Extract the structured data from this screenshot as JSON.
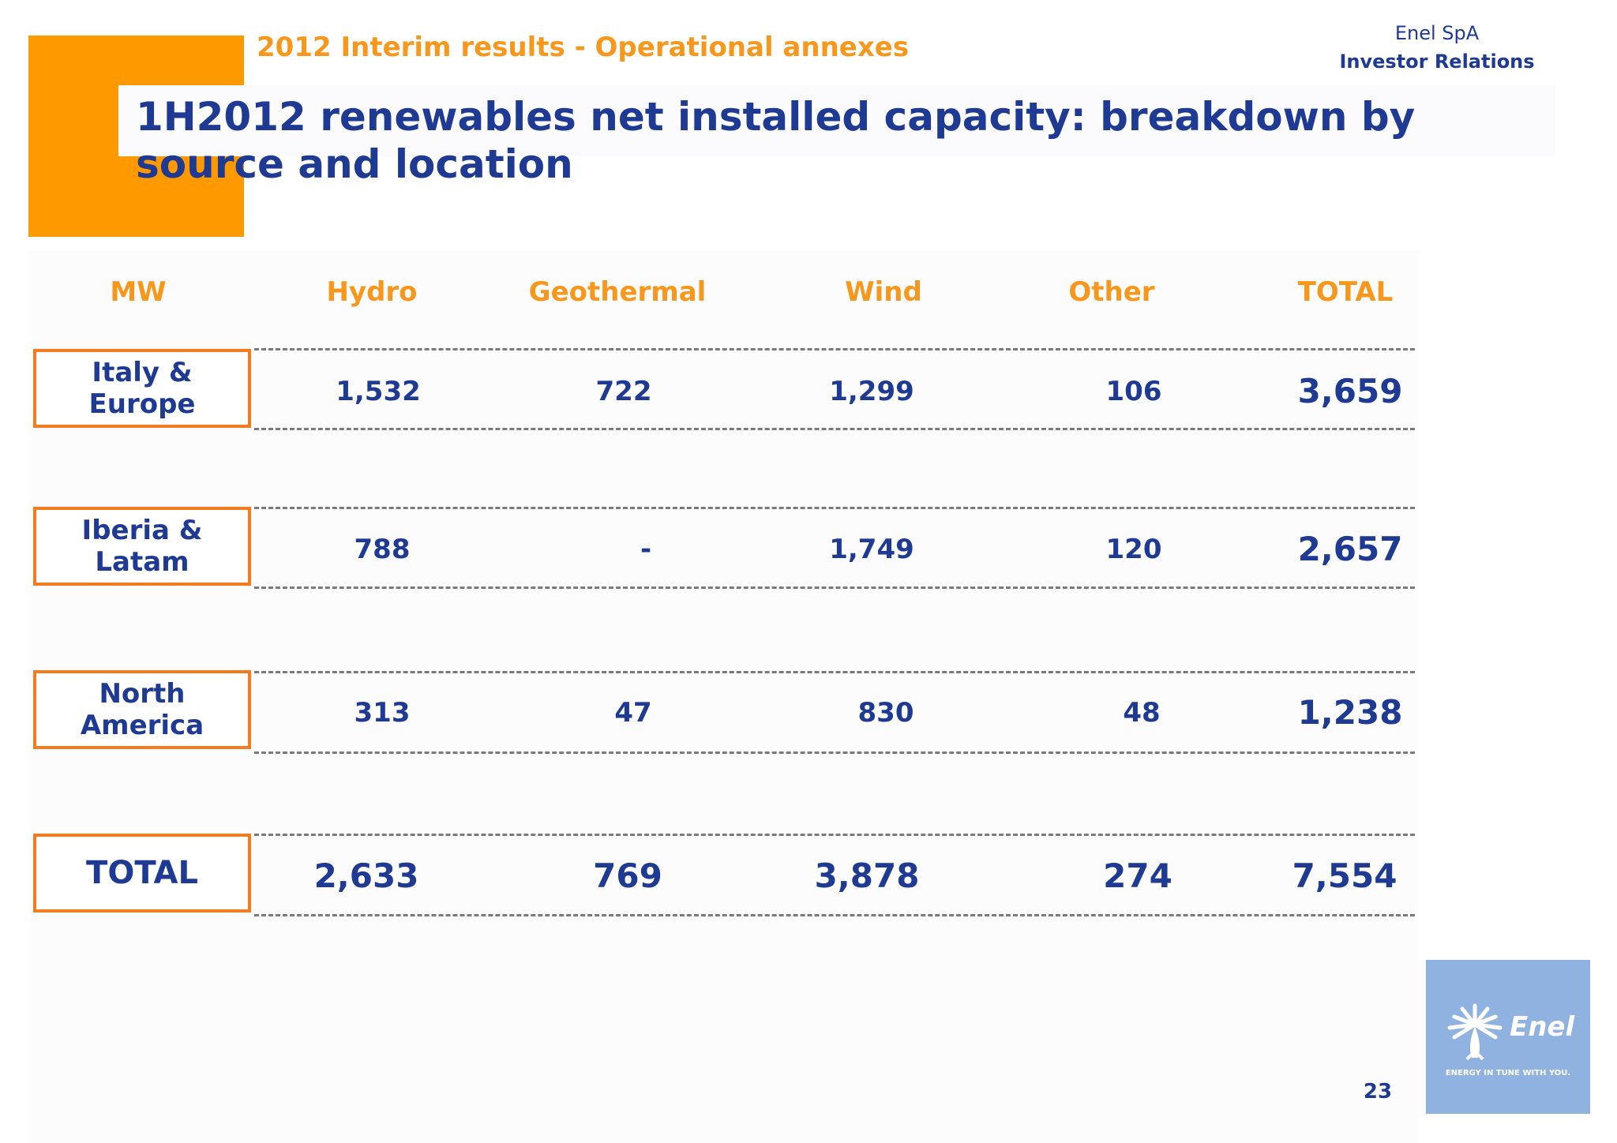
{
  "header": {
    "subtitle": "2012 Interim results - Operational annexes",
    "company": "Enel SpA",
    "department": "Investor Relations",
    "title": "1H2012 renewables net installed capacity: breakdown by source and location"
  },
  "table": {
    "columns": [
      "MW",
      "Hydro",
      "Geothermal",
      "Wind",
      "Other",
      "TOTAL"
    ],
    "rows": [
      {
        "label": "Italy & Europe",
        "values": [
          "1,532",
          "722",
          "1,299",
          "106",
          "3,659"
        ]
      },
      {
        "label": "Iberia & Latam",
        "values": [
          "788",
          "-",
          "1,749",
          "120",
          "2,657"
        ]
      },
      {
        "label": "North America",
        "values": [
          "313",
          "47",
          "830",
          "48",
          "1,238"
        ]
      },
      {
        "label": "TOTAL",
        "values": [
          "2,633",
          "769",
          "3,878",
          "274",
          "7,554"
        ]
      }
    ]
  },
  "logo": {
    "name": "Enel",
    "tagline": "ENERGY IN TUNE WITH YOU."
  },
  "page_number": "23",
  "colors": {
    "accent_orange": "#ff9900",
    "label_orange": "#f7981d",
    "box_border": "#f07d22",
    "text_blue": "#1f3a93",
    "logo_bg": "#8fb2e0"
  }
}
